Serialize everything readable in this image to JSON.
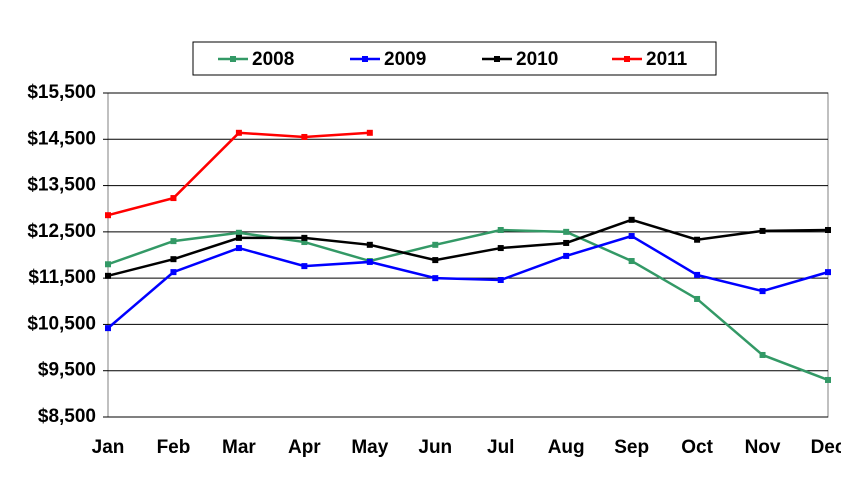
{
  "chart_data": {
    "type": "line",
    "categories": [
      "Jan",
      "Feb",
      "Mar",
      "Apr",
      "May",
      "Jun",
      "Jul",
      "Aug",
      "Sep",
      "Oct",
      "Nov",
      "Dec"
    ],
    "series": [
      {
        "name": "2008",
        "color": "#339966",
        "values": [
          11800,
          12300,
          12480,
          12280,
          11870,
          12220,
          12540,
          12500,
          11870,
          11050,
          9840,
          9300
        ]
      },
      {
        "name": "2009",
        "color": "#0000ff",
        "values": [
          10420,
          11630,
          12150,
          11760,
          11850,
          11500,
          11460,
          11980,
          12410,
          11570,
          11220,
          11630
        ]
      },
      {
        "name": "2010",
        "color": "#000000",
        "values": [
          11550,
          11910,
          12370,
          12370,
          12220,
          11890,
          12150,
          12260,
          12760,
          12330,
          12520,
          12540
        ]
      },
      {
        "name": "2011",
        "color": "#ff0000",
        "values": [
          12860,
          13230,
          14640,
          14550,
          14640,
          null,
          null,
          null,
          null,
          null,
          null,
          null
        ]
      }
    ],
    "ylim": [
      8500,
      15500
    ],
    "yticks": [
      {
        "value": 8500,
        "label": "$8,500"
      },
      {
        "value": 9500,
        "label": "$9,500"
      },
      {
        "value": 10500,
        "label": "$10,500"
      },
      {
        "value": 11500,
        "label": "$11,500"
      },
      {
        "value": 12500,
        "label": "$12,500"
      },
      {
        "value": 13500,
        "label": "$13,500"
      },
      {
        "value": 14500,
        "label": "$14,500"
      },
      {
        "value": 15500,
        "label": "$15,500"
      }
    ],
    "grid": true,
    "legend": "top"
  }
}
